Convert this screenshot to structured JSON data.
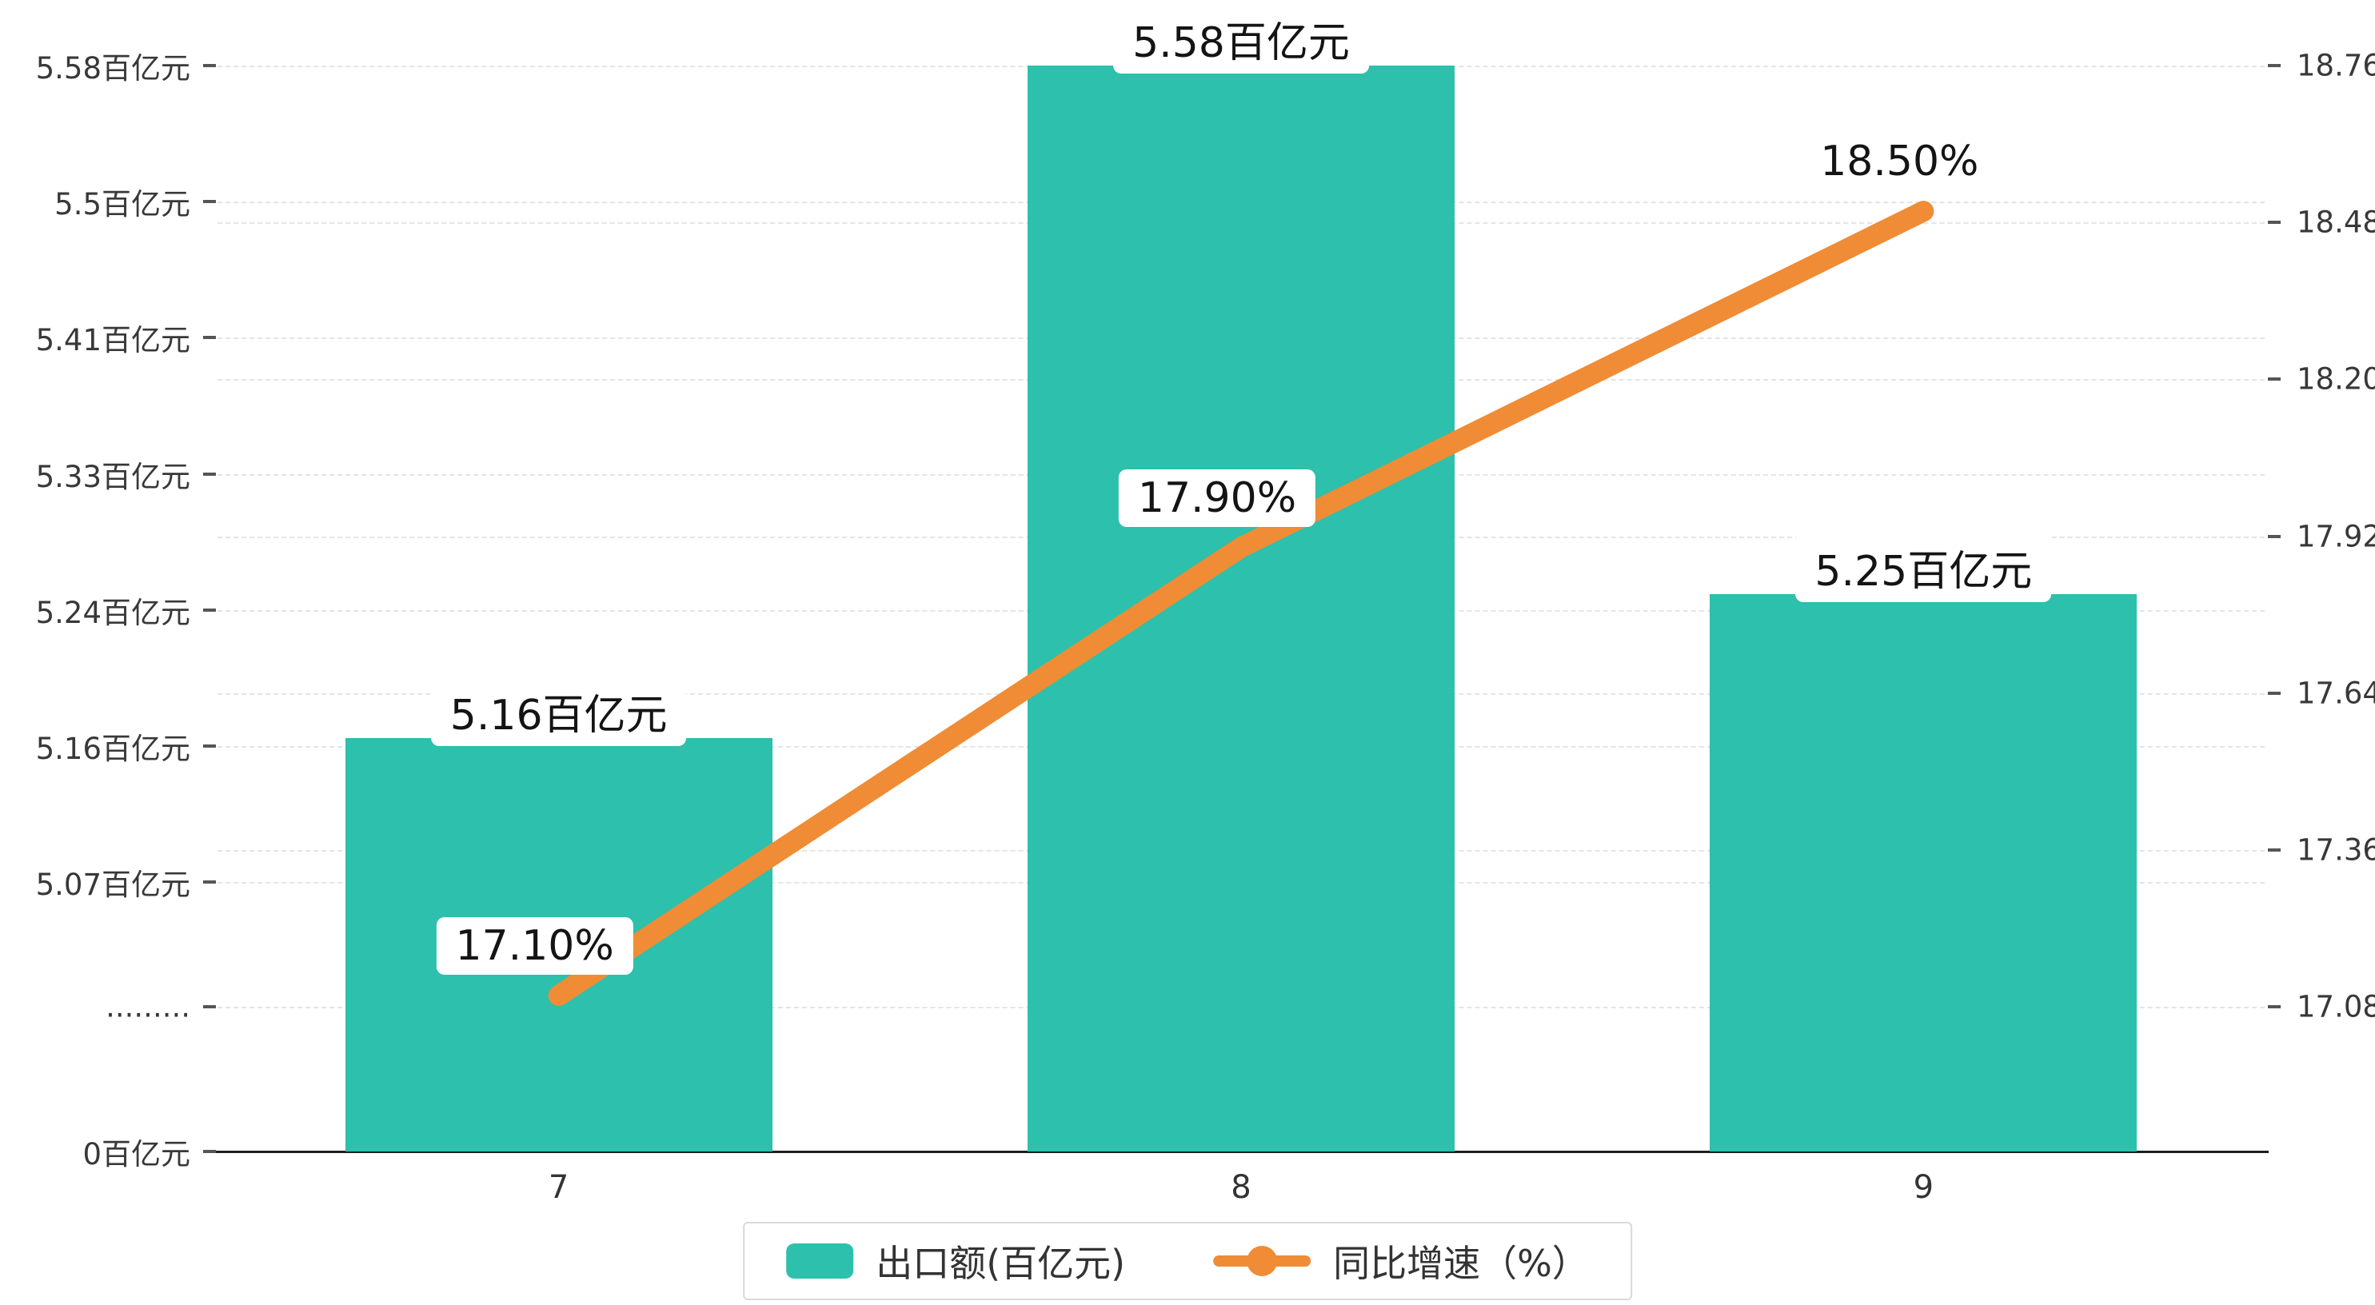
{
  "chart_data": {
    "type": "bar",
    "title": "",
    "xlabel": "",
    "ylabel": "",
    "categories": [
      "7",
      "8",
      "9"
    ],
    "series": [
      {
        "name": "出口额(百亿元)",
        "type": "bar",
        "axis": "left",
        "values": [
          5.16,
          5.58,
          5.25
        ],
        "value_labels": [
          "5.16百亿元",
          "5.58百亿元",
          "5.25百亿元"
        ],
        "color": "#2DC0AC"
      },
      {
        "name": "同比增速（%）",
        "type": "line",
        "axis": "right",
        "values": [
          17.1,
          17.9,
          18.5
        ],
        "value_labels": [
          "17.10%",
          "17.90%",
          "18.50%"
        ],
        "color": "#EF8C35"
      }
    ],
    "left_axis": {
      "tick_labels": [
        "5.58百亿元",
        "5.5百亿元",
        "5.41百亿元",
        "5.33百亿元",
        "5.24百亿元",
        "5.16百亿元",
        "5.07百亿元"
      ],
      "break_label": ".........",
      "zero_label": "0百亿元",
      "top_value": 5.58,
      "bottom_value": 5.07
    },
    "right_axis": {
      "tick_labels": [
        "18.76",
        "18.48",
        "18.20",
        "17.92",
        "17.64",
        "17.36",
        "17.08"
      ],
      "top_value": 18.76,
      "bottom_value": 17.08
    },
    "grid": {
      "show": true,
      "style": "dashed"
    },
    "legend": {
      "position": "bottom"
    },
    "colors": {
      "bar": "#2DC0AC",
      "line": "#EF8C35",
      "axis_text": "#383838",
      "grid_line": "#e4e4e4",
      "axis_line": "#1f1f1f"
    }
  }
}
